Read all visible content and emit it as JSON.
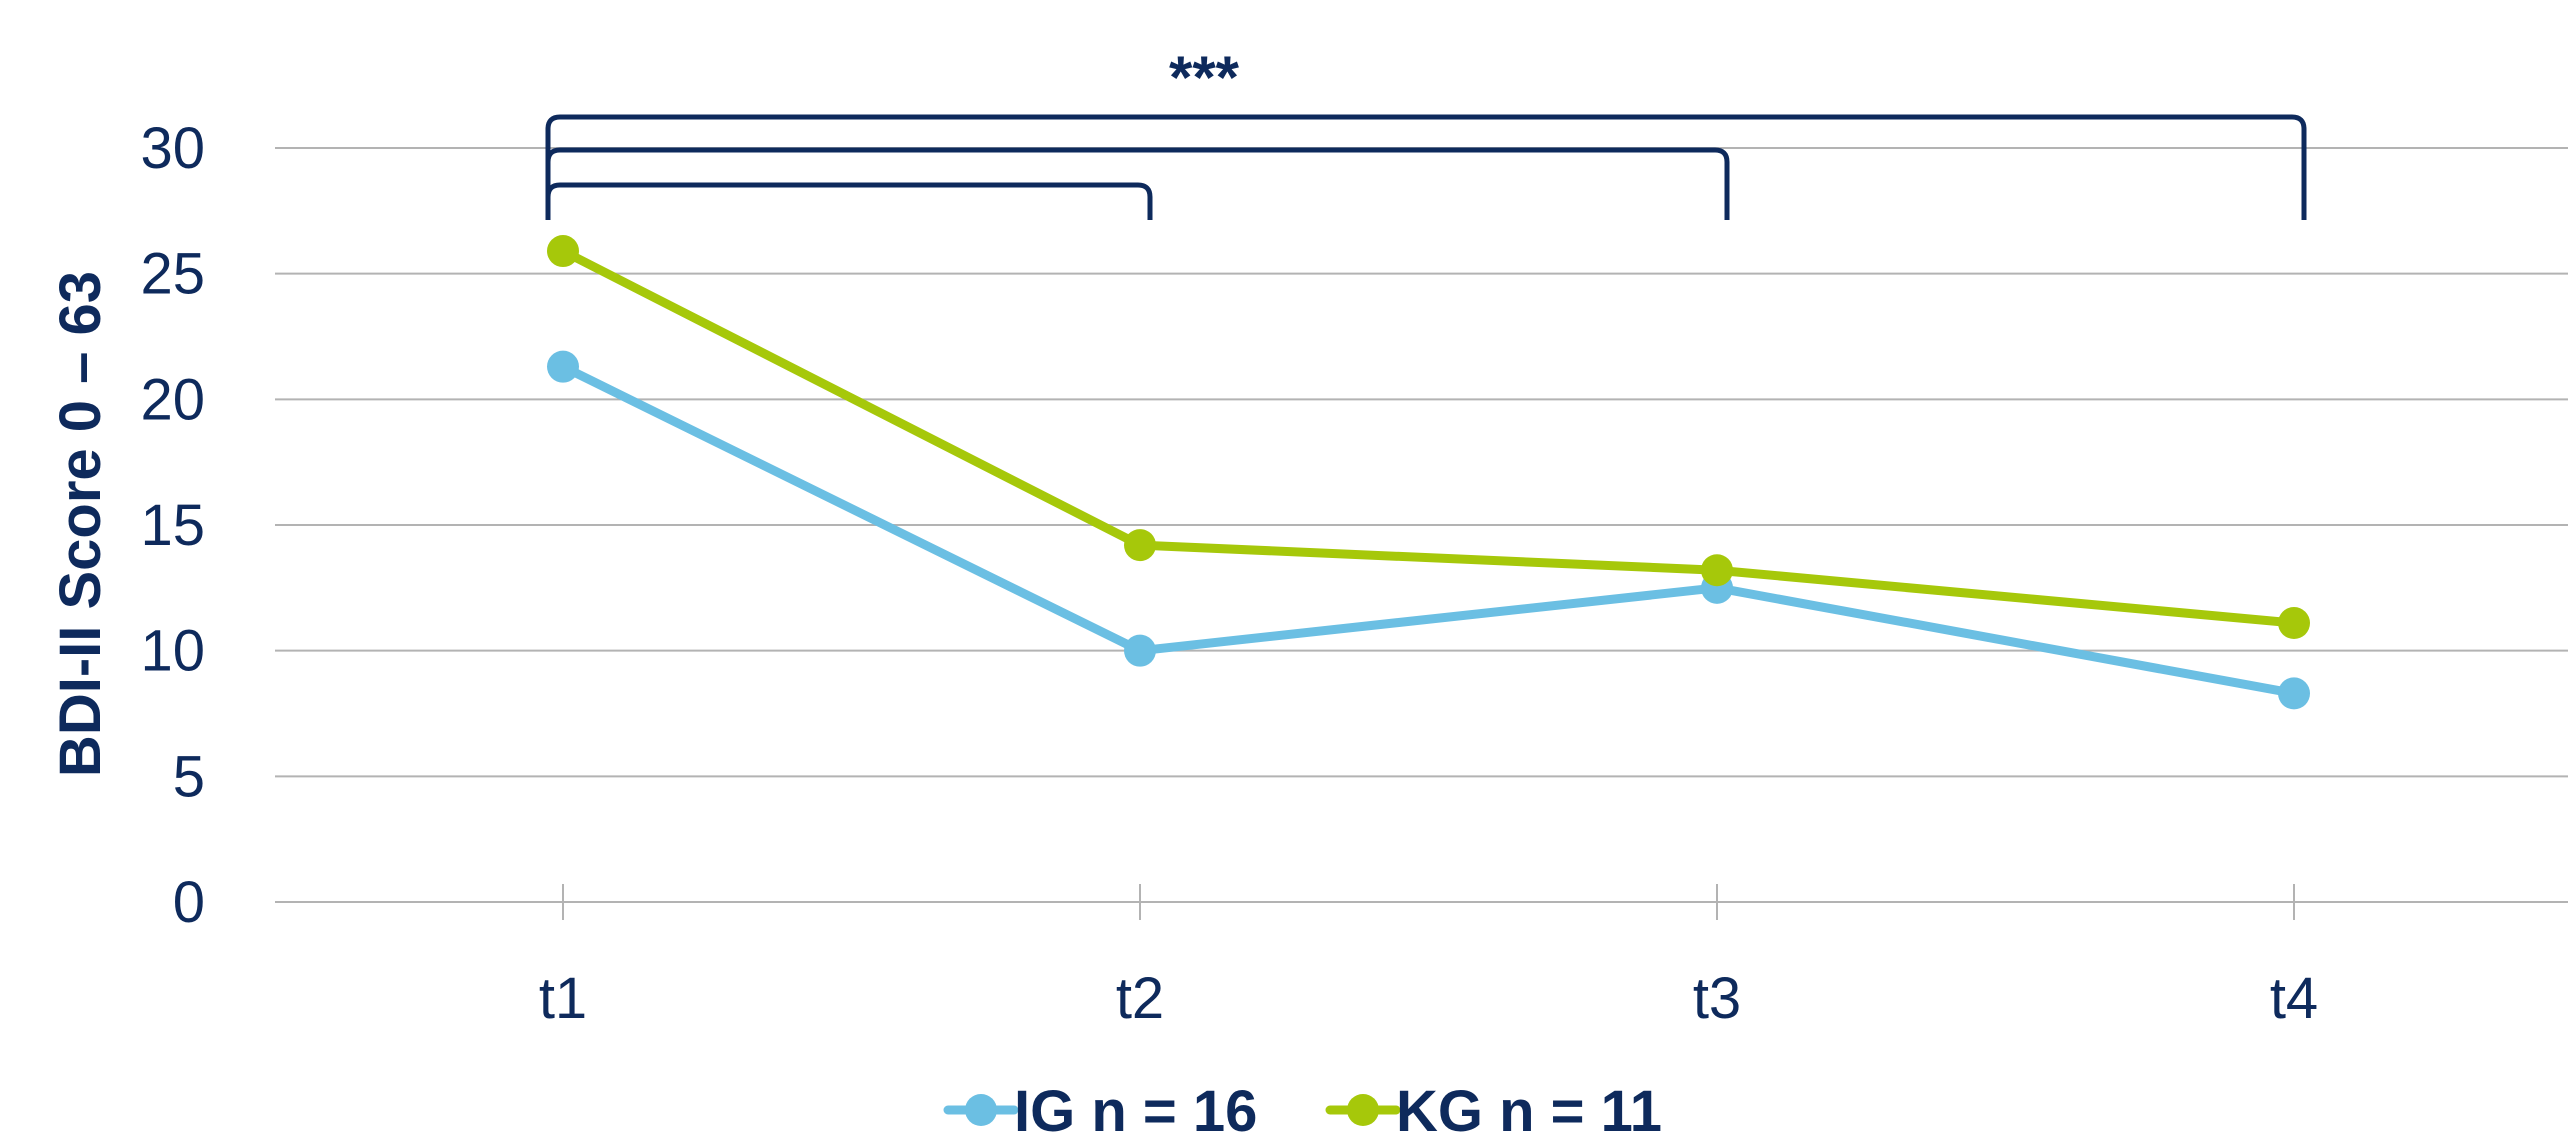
{
  "chart_data": {
    "type": "line",
    "categories": [
      "t1",
      "t2",
      "t3",
      "t4"
    ],
    "series": [
      {
        "name": "IG n = 16",
        "color": "#6bbfe3",
        "values": [
          21.3,
          10.0,
          12.5,
          8.3
        ]
      },
      {
        "name": "KG n = 11",
        "color": "#a6c80a",
        "values": [
          25.9,
          14.2,
          13.2,
          11.1
        ]
      }
    ],
    "ylabel": "BDI-II Score 0 – 63",
    "xlabel": "",
    "ylim": [
      0,
      30
    ],
    "yticks": [
      0,
      5,
      10,
      15,
      20,
      25,
      30
    ],
    "grid": true,
    "legend": "bottom",
    "significance": {
      "label": "***",
      "comparisons": [
        [
          "t1",
          "t2"
        ],
        [
          "t1",
          "t3"
        ],
        [
          "t1",
          "t4"
        ]
      ]
    },
    "axis_color": "#0e2a5c",
    "grid_color": "#b3b3b3"
  }
}
